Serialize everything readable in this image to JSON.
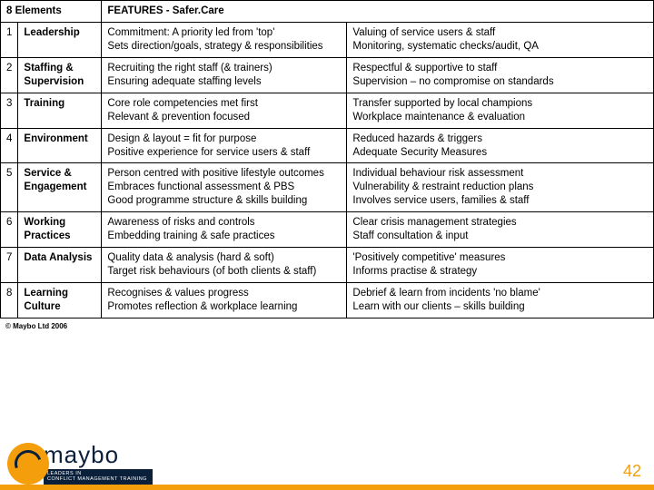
{
  "header": {
    "left": "8 Elements",
    "right": "FEATURES - Safer.Care"
  },
  "rows": [
    {
      "n": "1",
      "element": "Leadership",
      "col1": "Commitment: A priority led from 'top'\nSets direction/goals, strategy & responsibilities",
      "col2": "Valuing of service users & staff\nMonitoring, systematic checks/audit, QA"
    },
    {
      "n": "2",
      "element": "Staffing & Supervision",
      "col1": "Recruiting the right staff (& trainers)\nEnsuring adequate staffing levels",
      "col2": "Respectful & supportive to staff\nSupervision – no compromise on standards"
    },
    {
      "n": "3",
      "element": "Training",
      "col1": "Core role competencies met first\nRelevant & prevention focused",
      "col2": "Transfer supported by local champions\nWorkplace maintenance & evaluation"
    },
    {
      "n": "4",
      "element": "Environment",
      "col1": "Design & layout = fit for purpose\nPositive experience for service users & staff",
      "col2": "Reduced hazards & triggers\nAdequate Security Measures"
    },
    {
      "n": "5",
      "element": "Service & Engagement",
      "col1": "Person centred with positive lifestyle outcomes\nEmbraces functional assessment & PBS\nGood programme structure & skills building",
      "col2": "Individual behaviour risk assessment\nVulnerability & restraint reduction plans\nInvolves service users, families & staff"
    },
    {
      "n": "6",
      "element": "Working Practices",
      "col1": "Awareness of risks and controls\nEmbedding training & safe practices",
      "col2": "Clear crisis management strategies\nStaff consultation & input"
    },
    {
      "n": "7",
      "element": "Data Analysis",
      "col1": "Quality data & analysis (hard & soft)\nTarget risk behaviours (of both clients & staff)",
      "col2": "'Positively competitive' measures\nInforms practise & strategy"
    },
    {
      "n": "8",
      "element": "Learning Culture",
      "col1": "Recognises & values progress\nPromotes reflection & workplace learning",
      "col2": "Debrief & learn from incidents 'no blame'\nLearn with our clients – skills building"
    }
  ],
  "copyright": "© Maybo Ltd 2006",
  "logo": {
    "text": "maybo",
    "tagline": "LEADERS IN\nCONFLICT MANAGEMENT TRAINING"
  },
  "pageNumber": "42",
  "colors": {
    "accent": "#f59e0b",
    "dark": "#0a1f3a"
  }
}
